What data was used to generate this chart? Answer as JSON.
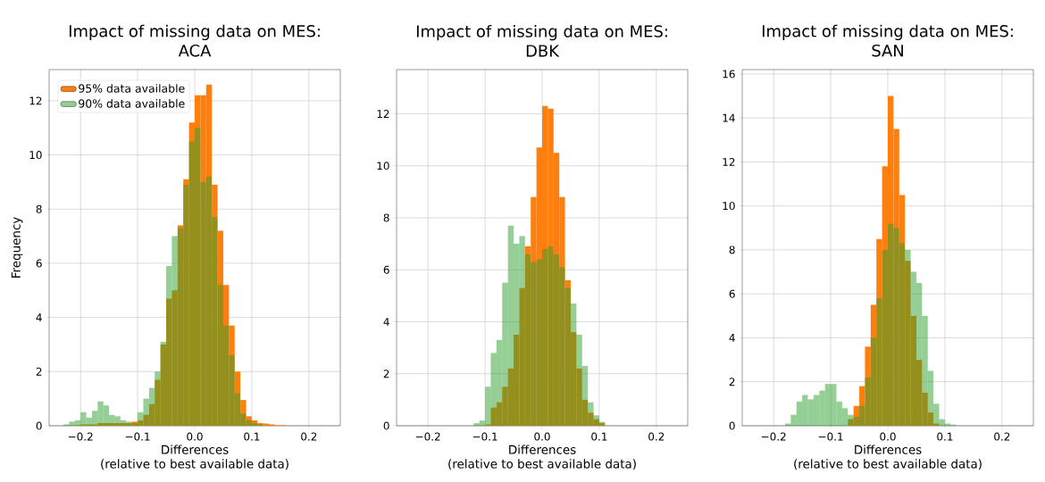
{
  "chart_data": [
    {
      "type": "histogram",
      "title": "Impact of missing data on MES:",
      "subtitle": "ACA",
      "xlabel": "Differences",
      "ylabel": "Frequency",
      "annotations": [
        "(relative to best available data)"
      ],
      "bins": [
        -0.23,
        -0.22,
        -0.21,
        -0.2,
        -0.19,
        -0.18,
        -0.17,
        -0.16,
        -0.15,
        -0.14,
        -0.13,
        -0.12,
        -0.11,
        -0.1,
        -0.09,
        -0.08,
        -0.07,
        -0.06,
        -0.05,
        -0.04,
        -0.03,
        -0.02,
        -0.01,
        0,
        0.01,
        0.02,
        0.03,
        0.04,
        0.05,
        0.06,
        0.07,
        0.08,
        0.09,
        0.1,
        0.11,
        0.12,
        0.13,
        0.14,
        0.15,
        0.16,
        0.17,
        0.18,
        0.19,
        0.2,
        0.21,
        0.22,
        0.23
      ],
      "series": [
        {
          "name": "95% data available",
          "color": "#ff7f0e",
          "values": [
            0,
            0,
            0.02,
            0.05,
            0.05,
            0.05,
            0.1,
            0.1,
            0.1,
            0.1,
            0.1,
            0.1,
            0.15,
            0.2,
            0.4,
            0.8,
            1.7,
            3.0,
            4.7,
            5.0,
            7.4,
            9.1,
            11.2,
            12.2,
            12.2,
            12.6,
            8.9,
            7.2,
            5.2,
            3.7,
            2.0,
            0.95,
            0.35,
            0.2,
            0.1,
            0.08,
            0.05,
            0.02,
            0.02,
            0,
            0,
            0,
            0,
            0,
            0,
            0
          ]
        },
        {
          "name": "90% data available",
          "color": "#95cf95",
          "values": [
            0.05,
            0.15,
            0.2,
            0.5,
            0.3,
            0.55,
            0.9,
            0.75,
            0.4,
            0.35,
            0.2,
            0.15,
            0.1,
            0.5,
            1.0,
            1.4,
            2.0,
            3.1,
            5.9,
            7.0,
            7.3,
            8.9,
            10.5,
            11.0,
            9.0,
            9.2,
            7.7,
            5.2,
            3.7,
            2.6,
            1.2,
            0.45,
            0.2,
            0.1,
            0.05,
            0,
            0,
            0,
            0,
            0,
            0,
            0,
            0,
            0,
            0,
            0
          ]
        }
      ],
      "xlim": [
        -0.255,
        0.255
      ],
      "ylim": [
        0,
        13.15
      ],
      "xticks": [
        {
          "value": -0.2,
          "label": "−0.2"
        },
        {
          "value": -0.1,
          "label": "−0.1"
        },
        {
          "value": 0,
          "label": "0.0"
        },
        {
          "value": 0.1,
          "label": "0.1"
        },
        {
          "value": 0.2,
          "label": "0.2"
        }
      ],
      "yticks": [
        0,
        2,
        4,
        6,
        8,
        10,
        12
      ],
      "grid": true,
      "legend": "top left"
    },
    {
      "type": "histogram",
      "title": "Impact of missing data on MES:",
      "subtitle": "DBK",
      "xlabel": "Differences",
      "annotations": [
        "(relative to best available data)"
      ],
      "bins": [
        -0.23,
        -0.22,
        -0.21,
        -0.2,
        -0.19,
        -0.18,
        -0.17,
        -0.16,
        -0.15,
        -0.14,
        -0.13,
        -0.12,
        -0.11,
        -0.1,
        -0.09,
        -0.08,
        -0.07,
        -0.06,
        -0.05,
        -0.04,
        -0.03,
        -0.02,
        -0.01,
        0,
        0.01,
        0.02,
        0.03,
        0.04,
        0.05,
        0.06,
        0.07,
        0.08,
        0.09,
        0.1,
        0.11,
        0.12,
        0.13,
        0.14,
        0.15,
        0.16,
        0.17,
        0.18,
        0.19,
        0.2,
        0.21,
        0.22,
        0.23
      ],
      "series": [
        {
          "color": "#ff7f0e",
          "values": [
            0,
            0,
            0,
            0,
            0,
            0,
            0,
            0,
            0,
            0,
            0,
            0,
            0,
            0.05,
            0.7,
            0.9,
            1.5,
            2.2,
            3.5,
            5.3,
            6.9,
            8.8,
            10.7,
            12.3,
            12.2,
            10.5,
            8.8,
            5.6,
            3.6,
            2.2,
            1.0,
            0.5,
            0.25,
            0.1,
            0,
            0,
            0,
            0,
            0,
            0,
            0,
            0,
            0,
            0,
            0,
            0
          ]
        },
        {
          "color": "#95cf95",
          "values": [
            0,
            0,
            0,
            0,
            0,
            0,
            0,
            0,
            0,
            0,
            0,
            0.1,
            0.2,
            1.5,
            2.8,
            3.3,
            5.5,
            7.7,
            7.0,
            7.3,
            6.6,
            6.3,
            6.4,
            6.8,
            6.9,
            6.6,
            6.1,
            5.3,
            4.7,
            3.5,
            2.3,
            0.9,
            0.4,
            0.15,
            0,
            0,
            0,
            0,
            0,
            0,
            0,
            0,
            0,
            0,
            0,
            0
          ]
        }
      ],
      "xlim": [
        -0.255,
        0.255
      ],
      "ylim": [
        0,
        13.7
      ],
      "xticks": [
        {
          "value": -0.2,
          "label": "−0.2"
        },
        {
          "value": -0.1,
          "label": "−0.1"
        },
        {
          "value": 0,
          "label": "0.0"
        },
        {
          "value": 0.1,
          "label": "0.1"
        },
        {
          "value": 0.2,
          "label": "0.2"
        }
      ],
      "yticks": [
        0,
        2,
        4,
        6,
        8,
        10,
        12
      ],
      "grid": true
    },
    {
      "type": "histogram",
      "title": "Impact of missing data on MES:",
      "subtitle": "SAN",
      "xlabel": "Differences",
      "annotations": [
        "(relative to best available data)"
      ],
      "bins": [
        -0.23,
        -0.22,
        -0.21,
        -0.2,
        -0.19,
        -0.18,
        -0.17,
        -0.16,
        -0.15,
        -0.14,
        -0.13,
        -0.12,
        -0.11,
        -0.1,
        -0.09,
        -0.08,
        -0.07,
        -0.06,
        -0.05,
        -0.04,
        -0.03,
        -0.02,
        -0.01,
        0,
        0.01,
        0.02,
        0.03,
        0.04,
        0.05,
        0.06,
        0.07,
        0.08,
        0.09,
        0.1,
        0.11,
        0.12,
        0.13,
        0.14,
        0.15,
        0.16,
        0.17,
        0.18,
        0.19,
        0.2,
        0.21,
        0.22,
        0.23
      ],
      "series": [
        {
          "color": "#ff7f0e",
          "values": [
            0,
            0,
            0,
            0,
            0,
            0,
            0,
            0,
            0,
            0,
            0,
            0,
            0,
            0,
            0,
            0,
            0.3,
            0.9,
            1.8,
            3.6,
            5.5,
            8.5,
            11.8,
            15.0,
            13.5,
            10.5,
            7.5,
            5.0,
            3.0,
            1.5,
            0.6,
            0.1,
            0,
            0,
            0,
            0,
            0,
            0,
            0,
            0,
            0,
            0,
            0,
            0,
            0,
            0
          ]
        },
        {
          "color": "#95cf95",
          "values": [
            0,
            0,
            0,
            0,
            0,
            0.1,
            0.5,
            1.1,
            1.4,
            1.2,
            1.4,
            1.6,
            1.9,
            1.9,
            1.1,
            0.8,
            0.5,
            0.4,
            0.9,
            2.2,
            4.0,
            5.8,
            8.0,
            9.2,
            9.0,
            8.3,
            8.0,
            7.0,
            6.5,
            5.0,
            2.5,
            1.0,
            0.3,
            0.1,
            0.05,
            0,
            0,
            0,
            0,
            0,
            0,
            0,
            0,
            0,
            0,
            0
          ]
        }
      ],
      "xlim": [
        -0.255,
        0.255
      ],
      "ylim": [
        0,
        16.2
      ],
      "xticks": [
        {
          "value": -0.2,
          "label": "−0.2"
        },
        {
          "value": -0.1,
          "label": "−0.1"
        },
        {
          "value": 0,
          "label": "0.0"
        },
        {
          "value": 0.1,
          "label": "0.1"
        },
        {
          "value": 0.2,
          "label": "0.2"
        }
      ],
      "yticks": [
        0,
        2,
        4,
        6,
        8,
        10,
        12,
        14,
        16
      ],
      "grid": true
    }
  ]
}
